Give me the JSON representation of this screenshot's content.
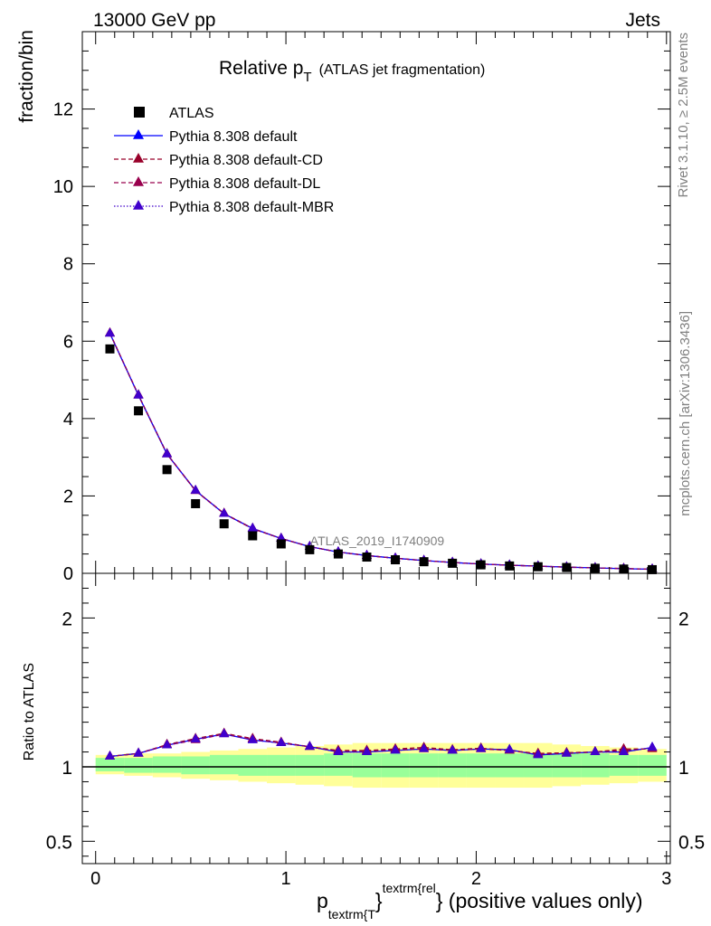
{
  "header": {
    "beam": "13000 GeV pp",
    "category": "Jets",
    "title_main": "Relative p",
    "title_sub": "T",
    "title_note": "(ATLAS jet fragmentation)",
    "analysis_id": "ATLAS_2019_I1740909",
    "rivet_note": "Rivet 3.1.10, ≥ 2.5M events",
    "source_note": "mcplots.cern.ch [arXiv:1306.3436]"
  },
  "axes": {
    "top_ylabel": "fraction/bin",
    "bottom_ylabel": "Ratio to ATLAS",
    "xlabel_p": "p",
    "xlabel_sub": "textrm{T",
    "xlabel_brace": "}",
    "xlabel_sup": "textrm{rel",
    "xlabel_rest": "} (positive values only)"
  },
  "colors": {
    "data": "#000000",
    "default": "#0000ff",
    "default_cd": "#99002a",
    "default_dl": "#99004d",
    "default_mbr": "#4000cc",
    "band_inner": "#99ff99",
    "band_outer": "#ffff99"
  },
  "legend": [
    {
      "label": "ATLAS",
      "key": "data"
    },
    {
      "label": "Pythia 8.308 default",
      "key": "default"
    },
    {
      "label": "Pythia 8.308 default-CD",
      "key": "default_cd"
    },
    {
      "label": "Pythia 8.308 default-DL",
      "key": "default_dl"
    },
    {
      "label": "Pythia 8.308 default-MBR",
      "key": "default_mbr"
    }
  ],
  "chart_data": {
    "type": "scatter",
    "x": [
      0.075,
      0.225,
      0.375,
      0.525,
      0.675,
      0.825,
      0.975,
      1.125,
      1.275,
      1.425,
      1.575,
      1.725,
      1.875,
      2.025,
      2.175,
      2.325,
      2.475,
      2.625,
      2.775,
      2.925
    ],
    "xlim": [
      -0.07,
      3.02
    ],
    "top_ylim": [
      0,
      14
    ],
    "ratio_ylim": [
      0.35,
      2.3
    ],
    "x_ticks": [
      0,
      1,
      2,
      3
    ],
    "top_y_ticks": [
      0,
      2,
      4,
      6,
      8,
      10,
      12
    ],
    "ratio_y_ticks": [
      0.5,
      1,
      2
    ],
    "data": [
      5.8,
      4.2,
      2.68,
      1.8,
      1.28,
      0.97,
      0.76,
      0.61,
      0.5,
      0.42,
      0.35,
      0.3,
      0.26,
      0.22,
      0.19,
      0.17,
      0.15,
      0.13,
      0.11,
      0.095
    ],
    "series": [
      {
        "name": "Pythia 8.308 default",
        "key": "default",
        "dash": "",
        "values": [
          6.2,
          4.6,
          3.08,
          2.14,
          1.54,
          1.16,
          0.9,
          0.69,
          0.55,
          0.46,
          0.39,
          0.33,
          0.28,
          0.24,
          0.21,
          0.185,
          0.16,
          0.14,
          0.12,
          0.105
        ],
        "ratio": [
          1.07,
          1.09,
          1.145,
          1.185,
          1.22,
          1.18,
          1.16,
          1.135,
          1.1,
          1.1,
          1.11,
          1.12,
          1.11,
          1.12,
          1.115,
          1.08,
          1.09,
          1.1,
          1.1,
          1.13
        ]
      },
      {
        "name": "Pythia 8.308 default-CD",
        "key": "default_cd",
        "dash": "5,3",
        "values": [
          6.21,
          4.61,
          3.09,
          2.14,
          1.55,
          1.16,
          0.9,
          0.69,
          0.55,
          0.46,
          0.39,
          0.33,
          0.28,
          0.24,
          0.21,
          0.185,
          0.16,
          0.14,
          0.125,
          0.105
        ],
        "ratio": [
          1.07,
          1.09,
          1.15,
          1.19,
          1.225,
          1.19,
          1.165,
          1.135,
          1.11,
          1.11,
          1.12,
          1.13,
          1.115,
          1.125,
          1.11,
          1.09,
          1.095,
          1.1,
          1.12,
          1.12
        ]
      },
      {
        "name": "Pythia 8.308 default-DL",
        "key": "default_dl",
        "dash": "5,3",
        "values": [
          6.2,
          4.6,
          3.08,
          2.13,
          1.54,
          1.15,
          0.9,
          0.69,
          0.55,
          0.46,
          0.39,
          0.33,
          0.28,
          0.24,
          0.21,
          0.185,
          0.16,
          0.14,
          0.12,
          0.105
        ],
        "ratio": [
          1.07,
          1.09,
          1.145,
          1.18,
          1.22,
          1.185,
          1.16,
          1.135,
          1.105,
          1.105,
          1.115,
          1.12,
          1.11,
          1.12,
          1.11,
          1.085,
          1.09,
          1.1,
          1.11,
          1.125
        ]
      },
      {
        "name": "Pythia 8.308 default-MBR",
        "key": "default_mbr",
        "dash": "1.5,2",
        "values": [
          6.2,
          4.6,
          3.08,
          2.14,
          1.54,
          1.16,
          0.9,
          0.69,
          0.55,
          0.46,
          0.39,
          0.33,
          0.28,
          0.24,
          0.21,
          0.185,
          0.16,
          0.14,
          0.12,
          0.105
        ],
        "ratio": [
          1.07,
          1.09,
          1.145,
          1.185,
          1.22,
          1.18,
          1.16,
          1.135,
          1.1,
          1.1,
          1.11,
          1.12,
          1.11,
          1.12,
          1.115,
          1.08,
          1.09,
          1.1,
          1.1,
          1.13
        ]
      }
    ],
    "band_inner": [
      [
        0.97,
        1.06
      ],
      [
        0.96,
        1.06
      ],
      [
        0.96,
        1.07
      ],
      [
        0.95,
        1.07
      ],
      [
        0.95,
        1.08
      ],
      [
        0.94,
        1.08
      ],
      [
        0.94,
        1.08
      ],
      [
        0.94,
        1.08
      ],
      [
        0.94,
        1.09
      ],
      [
        0.93,
        1.09
      ],
      [
        0.93,
        1.09
      ],
      [
        0.93,
        1.09
      ],
      [
        0.93,
        1.09
      ],
      [
        0.93,
        1.09
      ],
      [
        0.93,
        1.09
      ],
      [
        0.93,
        1.09
      ],
      [
        0.93,
        1.09
      ],
      [
        0.93,
        1.09
      ],
      [
        0.94,
        1.08
      ],
      [
        0.94,
        1.08
      ]
    ],
    "band_outer": [
      [
        0.95,
        1.08
      ],
      [
        0.94,
        1.09
      ],
      [
        0.93,
        1.09
      ],
      [
        0.92,
        1.1
      ],
      [
        0.91,
        1.11
      ],
      [
        0.9,
        1.12
      ],
      [
        0.89,
        1.13
      ],
      [
        0.88,
        1.14
      ],
      [
        0.87,
        1.15
      ],
      [
        0.86,
        1.16
      ],
      [
        0.86,
        1.16
      ],
      [
        0.86,
        1.16
      ],
      [
        0.86,
        1.16
      ],
      [
        0.86,
        1.16
      ],
      [
        0.86,
        1.16
      ],
      [
        0.86,
        1.16
      ],
      [
        0.87,
        1.15
      ],
      [
        0.88,
        1.14
      ],
      [
        0.89,
        1.13
      ],
      [
        0.9,
        1.12
      ]
    ]
  }
}
